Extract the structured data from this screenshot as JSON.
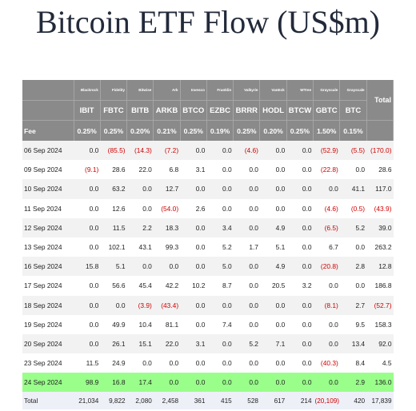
{
  "title": "Bitcoin ETF Flow (US$m)",
  "table": {
    "issuers": [
      "Blackrock",
      "Fidelity",
      "Bitwise",
      "Ark",
      "Invesco",
      "Franklin",
      "Valkyrie",
      "VanEck",
      "WTree",
      "Grayscale",
      "Grayscale",
      "Total"
    ],
    "tickers": [
      "IBIT",
      "FBTC",
      "BITB",
      "ARKB",
      "BTCO",
      "EZBC",
      "BRRR",
      "HODL",
      "BTCW",
      "GBTC",
      "BTC"
    ],
    "fee_label": "Fee",
    "fees": [
      "0.25%",
      "0.25%",
      "0.20%",
      "0.21%",
      "0.25%",
      "0.19%",
      "0.25%",
      "0.20%",
      "0.25%",
      "1.50%",
      "0.15%"
    ],
    "rows": [
      {
        "date": "06 Sep 2024",
        "values": [
          "0.0",
          "(85.5)",
          "(14.3)",
          "(7.2)",
          "0.0",
          "0.0",
          "(4.6)",
          "0.0",
          "0.0",
          "(52.9)",
          "(5.5)",
          "(170.0)"
        ]
      },
      {
        "date": "09 Sep 2024",
        "values": [
          "(9.1)",
          "28.6",
          "22.0",
          "6.8",
          "3.1",
          "0.0",
          "0.0",
          "0.0",
          "0.0",
          "(22.8)",
          "0.0",
          "28.6"
        ]
      },
      {
        "date": "10 Sep 2024",
        "values": [
          "0.0",
          "63.2",
          "0.0",
          "12.7",
          "0.0",
          "0.0",
          "0.0",
          "0.0",
          "0.0",
          "0.0",
          "41.1",
          "117.0"
        ]
      },
      {
        "date": "11 Sep 2024",
        "values": [
          "0.0",
          "12.6",
          "0.0",
          "(54.0)",
          "2.6",
          "0.0",
          "0.0",
          "0.0",
          "0.0",
          "(4.6)",
          "(0.5)",
          "(43.9)"
        ]
      },
      {
        "date": "12 Sep 2024",
        "values": [
          "0.0",
          "11.5",
          "2.2",
          "18.3",
          "0.0",
          "3.4",
          "0.0",
          "4.9",
          "0.0",
          "(6.5)",
          "5.2",
          "39.0"
        ]
      },
      {
        "date": "13 Sep 2024",
        "values": [
          "0.0",
          "102.1",
          "43.1",
          "99.3",
          "0.0",
          "5.2",
          "1.7",
          "5.1",
          "0.0",
          "6.7",
          "0.0",
          "263.2"
        ]
      },
      {
        "date": "16 Sep 2024",
        "values": [
          "15.8",
          "5.1",
          "0.0",
          "0.0",
          "0.0",
          "5.0",
          "0.0",
          "4.9",
          "0.0",
          "(20.8)",
          "2.8",
          "12.8"
        ]
      },
      {
        "date": "17 Sep 2024",
        "values": [
          "0.0",
          "56.6",
          "45.4",
          "42.2",
          "10.2",
          "8.7",
          "0.0",
          "20.5",
          "3.2",
          "0.0",
          "0.0",
          "186.8"
        ]
      },
      {
        "date": "18 Sep 2024",
        "values": [
          "0.0",
          "0.0",
          "(3.9)",
          "(43.4)",
          "0.0",
          "0.0",
          "0.0",
          "0.0",
          "0.0",
          "(8.1)",
          "2.7",
          "(52.7)"
        ]
      },
      {
        "date": "19 Sep 2024",
        "values": [
          "0.0",
          "49.9",
          "10.4",
          "81.1",
          "0.0",
          "7.4",
          "0.0",
          "0.0",
          "0.0",
          "0.0",
          "9.5",
          "158.3"
        ]
      },
      {
        "date": "20 Sep 2024",
        "values": [
          "0.0",
          "26.1",
          "15.1",
          "22.0",
          "3.1",
          "0.0",
          "5.2",
          "7.1",
          "0.0",
          "0.0",
          "13.4",
          "92.0"
        ]
      },
      {
        "date": "23 Sep 2024",
        "values": [
          "11.5",
          "24.9",
          "0.0",
          "0.0",
          "0.0",
          "0.0",
          "0.0",
          "0.0",
          "0.0",
          "(40.3)",
          "8.4",
          "4.5"
        ]
      },
      {
        "date": "24 Sep 2024",
        "values": [
          "98.9",
          "16.8",
          "17.4",
          "0.0",
          "0.0",
          "0.0",
          "0.0",
          "0.0",
          "0.0",
          "0.0",
          "2.9",
          "136.0"
        ]
      }
    ],
    "total": {
      "label": "Total",
      "values": [
        "21,034",
        "9,822",
        "2,080",
        "2,458",
        "361",
        "415",
        "528",
        "617",
        "214",
        "(20,109)",
        "420",
        "17,839"
      ]
    }
  }
}
